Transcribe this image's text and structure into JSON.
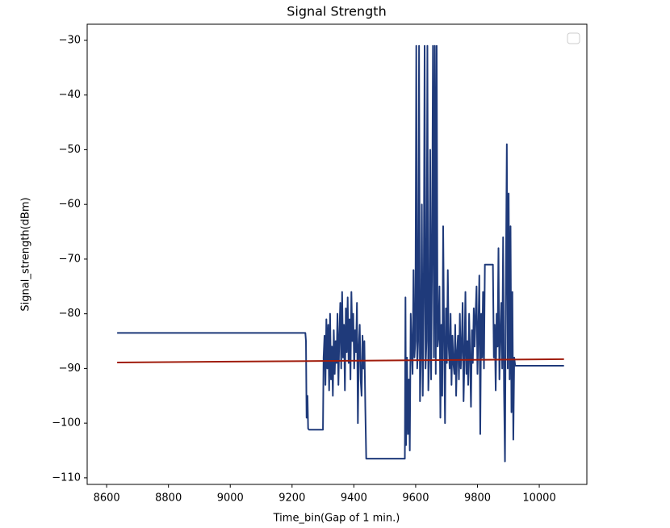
{
  "chart_data": {
    "type": "line",
    "title": "Signal Strength",
    "x_label": "Time_bin(Gap of 1 min.)",
    "y_label": "Signal_strength(dBm)",
    "xlim": [
      8537,
      10154
    ],
    "ylim": [
      -111.2,
      -27.05
    ],
    "xticks": [
      8600,
      8800,
      9000,
      9200,
      9400,
      9600,
      9800,
      10000
    ],
    "yticks": [
      {
        "value": -30,
        "label": "−30"
      },
      {
        "value": -40,
        "label": "−40"
      },
      {
        "value": -50,
        "label": "−50"
      },
      {
        "value": -60,
        "label": "−60"
      },
      {
        "value": -70,
        "label": "−70"
      },
      {
        "value": -80,
        "label": "−80"
      },
      {
        "value": -90,
        "label": "−90"
      },
      {
        "value": -100,
        "label": "−100"
      },
      {
        "value": -110,
        "label": "−110"
      }
    ],
    "grid": false,
    "series": [
      {
        "color": "#1f3a7a",
        "x": [
          8634,
          9243,
          9245,
          9247,
          9250,
          9252,
          9255,
          9300,
          9302,
          9305,
          9308,
          9311,
          9314,
          9317,
          9320,
          9323,
          9326,
          9329,
          9332,
          9335,
          9338,
          9341,
          9344,
          9347,
          9350,
          9353,
          9356,
          9359,
          9362,
          9365,
          9368,
          9371,
          9374,
          9377,
          9380,
          9383,
          9386,
          9389,
          9392,
          9395,
          9398,
          9401,
          9404,
          9407,
          9410,
          9413,
          9416,
          9419,
          9422,
          9425,
          9428,
          9431,
          9434,
          9437,
          9440,
          9565,
          9567,
          9569,
          9572,
          9575,
          9578,
          9581,
          9584,
          9587,
          9590,
          9593,
          9596,
          9599,
          9602,
          9605,
          9608,
          9611,
          9614,
          9617,
          9620,
          9623,
          9626,
          9629,
          9632,
          9635,
          9638,
          9641,
          9644,
          9647,
          9650,
          9653,
          9656,
          9659,
          9662,
          9665,
          9668,
          9671,
          9674,
          9677,
          9680,
          9683,
          9686,
          9689,
          9692,
          9695,
          9698,
          9701,
          9704,
          9707,
          9710,
          9713,
          9716,
          9719,
          9722,
          9725,
          9728,
          9731,
          9734,
          9737,
          9740,
          9743,
          9746,
          9749,
          9752,
          9755,
          9758,
          9761,
          9764,
          9767,
          9770,
          9773,
          9776,
          9779,
          9782,
          9785,
          9788,
          9791,
          9794,
          9797,
          9800,
          9803,
          9806,
          9809,
          9812,
          9815,
          9818,
          9821,
          9824,
          9850,
          9853,
          9856,
          9859,
          9862,
          9865,
          9868,
          9871,
          9874,
          9877,
          9880,
          9883,
          9886,
          9889,
          9892,
          9895,
          9898,
          9901,
          9904,
          9907,
          9910,
          9913,
          9916,
          9919,
          9922,
          10080
        ],
        "values": [
          -83.5,
          -83.5,
          -85,
          -99,
          -95,
          -101,
          -101.2,
          -101.2,
          -88,
          -84,
          -93,
          -81,
          -90,
          -82,
          -94,
          -80,
          -92,
          -86,
          -95,
          -83,
          -91,
          -85,
          -89,
          -80,
          -93,
          -84,
          -78,
          -90,
          -76,
          -88,
          -82,
          -94,
          -79,
          -87,
          -77,
          -89,
          -81,
          -92,
          -76,
          -85,
          -80,
          -90,
          -83,
          -87,
          -78,
          -100,
          -86,
          -82,
          -92,
          -95,
          -84,
          -90,
          -85,
          -97,
          -106.5,
          -106.5,
          -77,
          -104,
          -88,
          -102,
          -92,
          -105,
          -80,
          -86,
          -91,
          -72,
          -88,
          -85,
          -31,
          -90,
          -85,
          -31,
          -96,
          -88,
          -60,
          -95,
          -78,
          -31,
          -90,
          -85,
          -31,
          -94,
          -88,
          -50,
          -92,
          -70,
          -31,
          -88,
          -31,
          -91,
          -31,
          -86,
          -84,
          -75,
          -99,
          -82,
          -95,
          -64,
          -84,
          -100,
          -79,
          -89,
          -72,
          -86,
          -90,
          -80,
          -93,
          -84,
          -89,
          -91,
          -82,
          -95,
          -87,
          -84,
          -92,
          -80,
          -90,
          -86,
          -78,
          -96,
          -88,
          -76,
          -91,
          -85,
          -93,
          -80,
          -88,
          -97,
          -83,
          -89,
          -79,
          -86,
          -80,
          -75,
          -91,
          -83,
          -73,
          -102,
          -80,
          -88,
          -76,
          -90,
          -71,
          -71,
          -88,
          -82,
          -94,
          -80,
          -86,
          -68,
          -92,
          -84,
          -78,
          -90,
          -66,
          -94,
          -107,
          -74,
          -49,
          -90,
          -58,
          -92,
          -64,
          -98,
          -76,
          -103,
          -88,
          -89.5,
          -89.5
        ]
      },
      {
        "color": "#a01c0c",
        "x": [
          8634,
          10080
        ],
        "values": [
          -88.9,
          -88.3
        ]
      }
    ]
  }
}
